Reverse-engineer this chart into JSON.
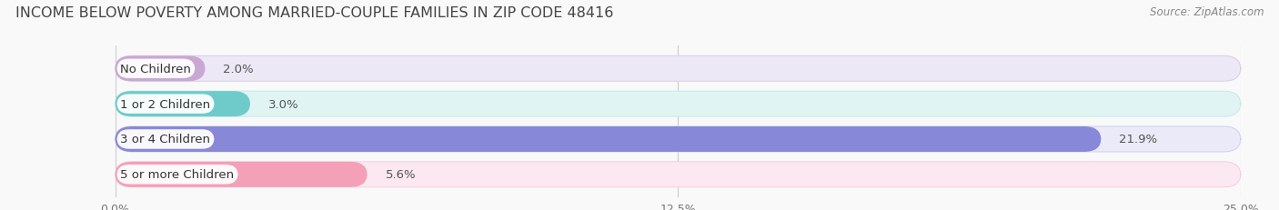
{
  "title": "INCOME BELOW POVERTY AMONG MARRIED-COUPLE FAMILIES IN ZIP CODE 48416",
  "source": "Source: ZipAtlas.com",
  "categories": [
    "No Children",
    "1 or 2 Children",
    "3 or 4 Children",
    "5 or more Children"
  ],
  "values": [
    2.0,
    3.0,
    21.9,
    5.6
  ],
  "bar_colors": [
    "#c9a8d4",
    "#6ecbca",
    "#8888d8",
    "#f4a0b8"
  ],
  "bg_colors": [
    "#ede8f5",
    "#e0f4f4",
    "#eaeaf8",
    "#fce8f0"
  ],
  "border_colors": [
    "#d8cce8",
    "#c8e8e8",
    "#d0d0ee",
    "#f0d0e0"
  ],
  "xlim": [
    0,
    25.0
  ],
  "xticks": [
    0.0,
    12.5,
    25.0
  ],
  "xticklabels": [
    "0.0%",
    "12.5%",
    "25.0%"
  ],
  "background_color": "#f9f9f9",
  "title_fontsize": 11.5,
  "label_fontsize": 9.5,
  "value_fontsize": 9.5,
  "tick_fontsize": 9
}
